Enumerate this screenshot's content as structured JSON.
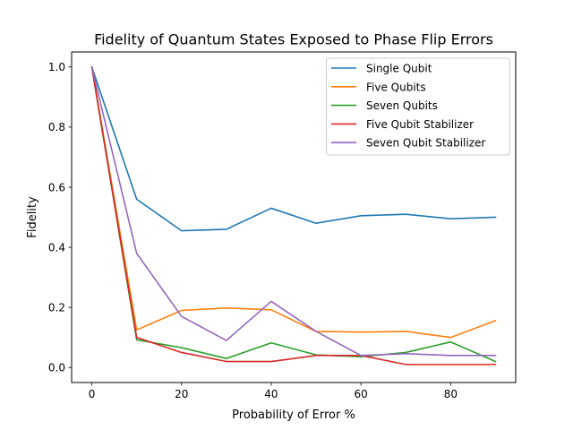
{
  "chart_data": {
    "type": "line",
    "title": "Fidelity of Quantum States Exposed to Phase Flip Errors",
    "xlabel": "Probability of Error %",
    "ylabel": "Fidelity",
    "xlim": [
      -4.5,
      94.5
    ],
    "ylim": [
      -0.05,
      1.05
    ],
    "xticks": [
      0,
      20,
      40,
      60,
      80
    ],
    "xtick_labels": [
      "0",
      "20",
      "40",
      "60",
      "80"
    ],
    "yticks": [
      0.0,
      0.2,
      0.4,
      0.6,
      0.8,
      1.0
    ],
    "ytick_labels": [
      "0.0",
      "0.2",
      "0.4",
      "0.6",
      "0.8",
      "1.0"
    ],
    "grid": false,
    "legend_position": "upper right",
    "x": [
      0,
      10,
      20,
      30,
      40,
      50,
      60,
      70,
      80,
      90
    ],
    "series": [
      {
        "name": "Single Qubit",
        "color": "#1f77b4",
        "values": [
          1.0,
          0.56,
          0.455,
          0.46,
          0.53,
          0.48,
          0.505,
          0.51,
          0.495,
          0.5
        ]
      },
      {
        "name": "Five Qubits",
        "color": "#ff7f0e",
        "values": [
          1.0,
          0.125,
          0.19,
          0.198,
          0.192,
          0.12,
          0.118,
          0.12,
          0.1,
          0.156
        ]
      },
      {
        "name": "Seven Qubits",
        "color": "#2ca02c",
        "values": [
          1.0,
          0.092,
          0.066,
          0.03,
          0.082,
          0.042,
          0.036,
          0.05,
          0.085,
          0.02
        ]
      },
      {
        "name": "Five Qubit Stabilizer",
        "color": "#d62728",
        "values": [
          1.0,
          0.1,
          0.05,
          0.02,
          0.02,
          0.04,
          0.04,
          0.01,
          0.01,
          0.01
        ]
      },
      {
        "name": "Seven Qubit Stabilizer",
        "color": "#9467bd",
        "values": [
          1.0,
          0.38,
          0.17,
          0.09,
          0.22,
          0.12,
          0.04,
          0.046,
          0.04,
          0.04
        ]
      }
    ]
  }
}
